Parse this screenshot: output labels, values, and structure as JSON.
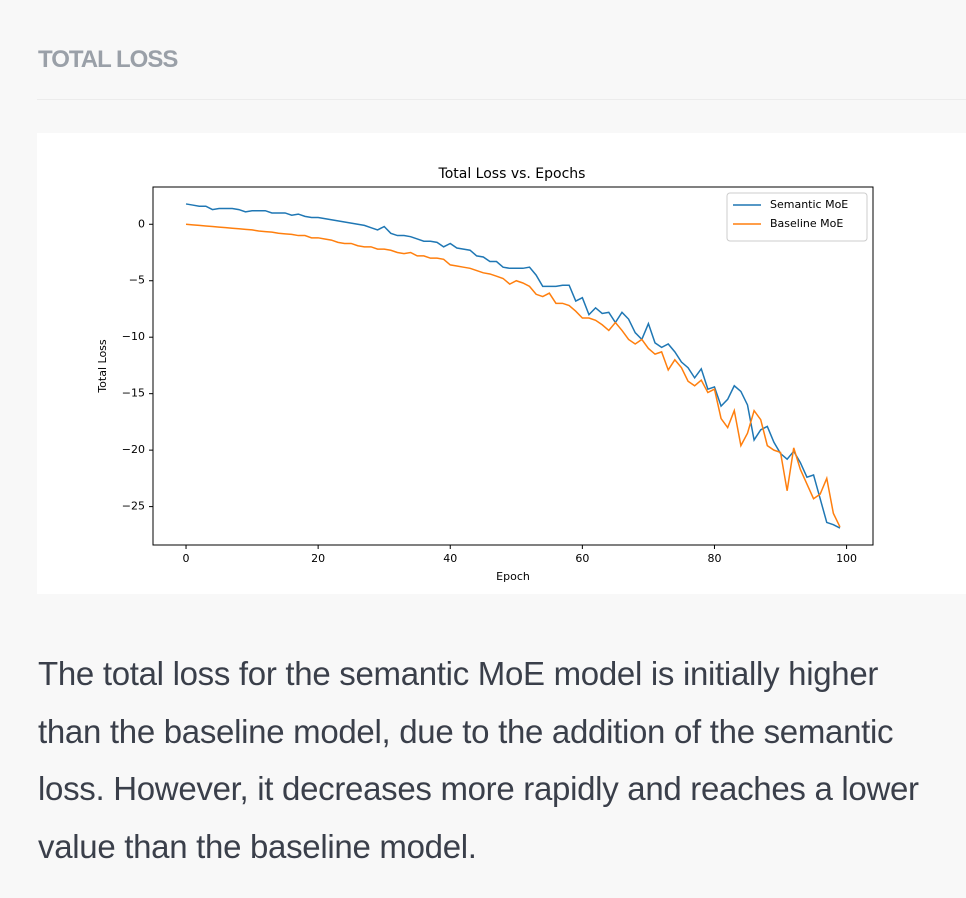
{
  "header": {
    "title": "TOTAL LOSS"
  },
  "chart_data": {
    "type": "line",
    "title": "Total Loss vs. Epochs",
    "x_label": "Epoch",
    "y_label": "Total Loss",
    "x": [
      0,
      1,
      2,
      3,
      4,
      5,
      6,
      7,
      8,
      9,
      10,
      11,
      12,
      13,
      14,
      15,
      16,
      17,
      18,
      19,
      20,
      21,
      22,
      23,
      24,
      25,
      26,
      27,
      28,
      29,
      30,
      31,
      32,
      33,
      34,
      35,
      36,
      37,
      38,
      39,
      40,
      41,
      42,
      43,
      44,
      45,
      46,
      47,
      48,
      49,
      50,
      51,
      52,
      53,
      54,
      55,
      56,
      57,
      58,
      59,
      60,
      61,
      62,
      63,
      64,
      65,
      66,
      67,
      68,
      69,
      70,
      71,
      72,
      73,
      74,
      75,
      76,
      77,
      78,
      79,
      80,
      81,
      82,
      83,
      84,
      85,
      86,
      87,
      88,
      89,
      90,
      91,
      92,
      93,
      94,
      95,
      96,
      97,
      98,
      99
    ],
    "series": [
      {
        "name": "Semantic MoE",
        "color": "#1f77b4",
        "values": [
          1.8,
          1.7,
          1.6,
          1.6,
          1.3,
          1.4,
          1.4,
          1.4,
          1.3,
          1.1,
          1.2,
          1.2,
          1.2,
          1.0,
          1.0,
          1.0,
          0.8,
          0.9,
          0.7,
          0.6,
          0.6,
          0.5,
          0.4,
          0.3,
          0.2,
          0.1,
          0.0,
          -0.1,
          -0.3,
          -0.5,
          -0.2,
          -0.8,
          -1.0,
          -1.0,
          -1.1,
          -1.3,
          -1.5,
          -1.5,
          -1.6,
          -2.0,
          -1.7,
          -2.1,
          -2.2,
          -2.3,
          -2.8,
          -2.9,
          -3.3,
          -3.3,
          -3.8,
          -3.9,
          -3.9,
          -3.9,
          -3.8,
          -4.5,
          -5.5,
          -5.5,
          -5.5,
          -5.4,
          -5.4,
          -6.8,
          -6.5,
          -8.0,
          -7.4,
          -7.9,
          -7.8,
          -8.7,
          -7.8,
          -8.4,
          -9.6,
          -10.2,
          -8.8,
          -10.5,
          -10.9,
          -10.6,
          -11.3,
          -12.2,
          -12.7,
          -13.6,
          -12.8,
          -14.6,
          -14.4,
          -16.1,
          -15.5,
          -14.3,
          -14.8,
          -16.0,
          -19.1,
          -18.2,
          -17.9,
          -19.3,
          -20.3,
          -20.8,
          -20.1,
          -21.1,
          -22.4,
          -22.2,
          -24.3,
          -26.4,
          -26.6,
          -26.9
        ]
      },
      {
        "name": "Baseline MoE",
        "color": "#ff7f0e",
        "values": [
          0.0,
          -0.05,
          -0.1,
          -0.15,
          -0.2,
          -0.25,
          -0.3,
          -0.35,
          -0.4,
          -0.45,
          -0.5,
          -0.6,
          -0.65,
          -0.7,
          -0.8,
          -0.85,
          -0.9,
          -1.0,
          -1.0,
          -1.2,
          -1.2,
          -1.3,
          -1.4,
          -1.6,
          -1.7,
          -1.7,
          -1.9,
          -2.0,
          -2.0,
          -2.2,
          -2.2,
          -2.3,
          -2.5,
          -2.6,
          -2.5,
          -2.8,
          -2.8,
          -3.0,
          -3.0,
          -3.1,
          -3.6,
          -3.7,
          -3.8,
          -3.9,
          -4.1,
          -4.3,
          -4.4,
          -4.6,
          -4.8,
          -5.3,
          -5.0,
          -5.2,
          -5.5,
          -6.2,
          -6.4,
          -6.1,
          -7.0,
          -7.0,
          -7.2,
          -7.7,
          -8.3,
          -8.3,
          -8.5,
          -8.9,
          -9.4,
          -8.7,
          -9.4,
          -10.2,
          -10.6,
          -10.2,
          -11.0,
          -11.5,
          -11.3,
          -12.9,
          -12.0,
          -12.7,
          -13.9,
          -14.3,
          -13.8,
          -14.9,
          -14.6,
          -17.2,
          -18.0,
          -16.5,
          -19.6,
          -18.5,
          -16.5,
          -17.3,
          -19.6,
          -20.0,
          -20.2,
          -23.6,
          -19.8,
          -21.7,
          -23.0,
          -24.3,
          -23.9,
          -22.5,
          -25.6,
          -26.8
        ]
      }
    ],
    "xlim": [
      -5,
      104
    ],
    "ylim": [
      -28.4,
      3.3
    ],
    "xticks": [
      0,
      20,
      40,
      60,
      80,
      100
    ],
    "yticks": [
      0,
      {
        "value": -5,
        "label": "−5"
      },
      {
        "value": -10,
        "label": "−10"
      },
      {
        "value": -15,
        "label": "−15"
      },
      {
        "value": -20,
        "label": "−20"
      },
      {
        "value": -25,
        "label": "−25"
      }
    ],
    "legend": "upper right",
    "grid": false
  },
  "paragraph": "The total loss for the semantic MoE model is initially higher than the baseline model, due to the addition of the semantic loss. However, it decreases more rapidly and reaches a lower value than the baseline model."
}
